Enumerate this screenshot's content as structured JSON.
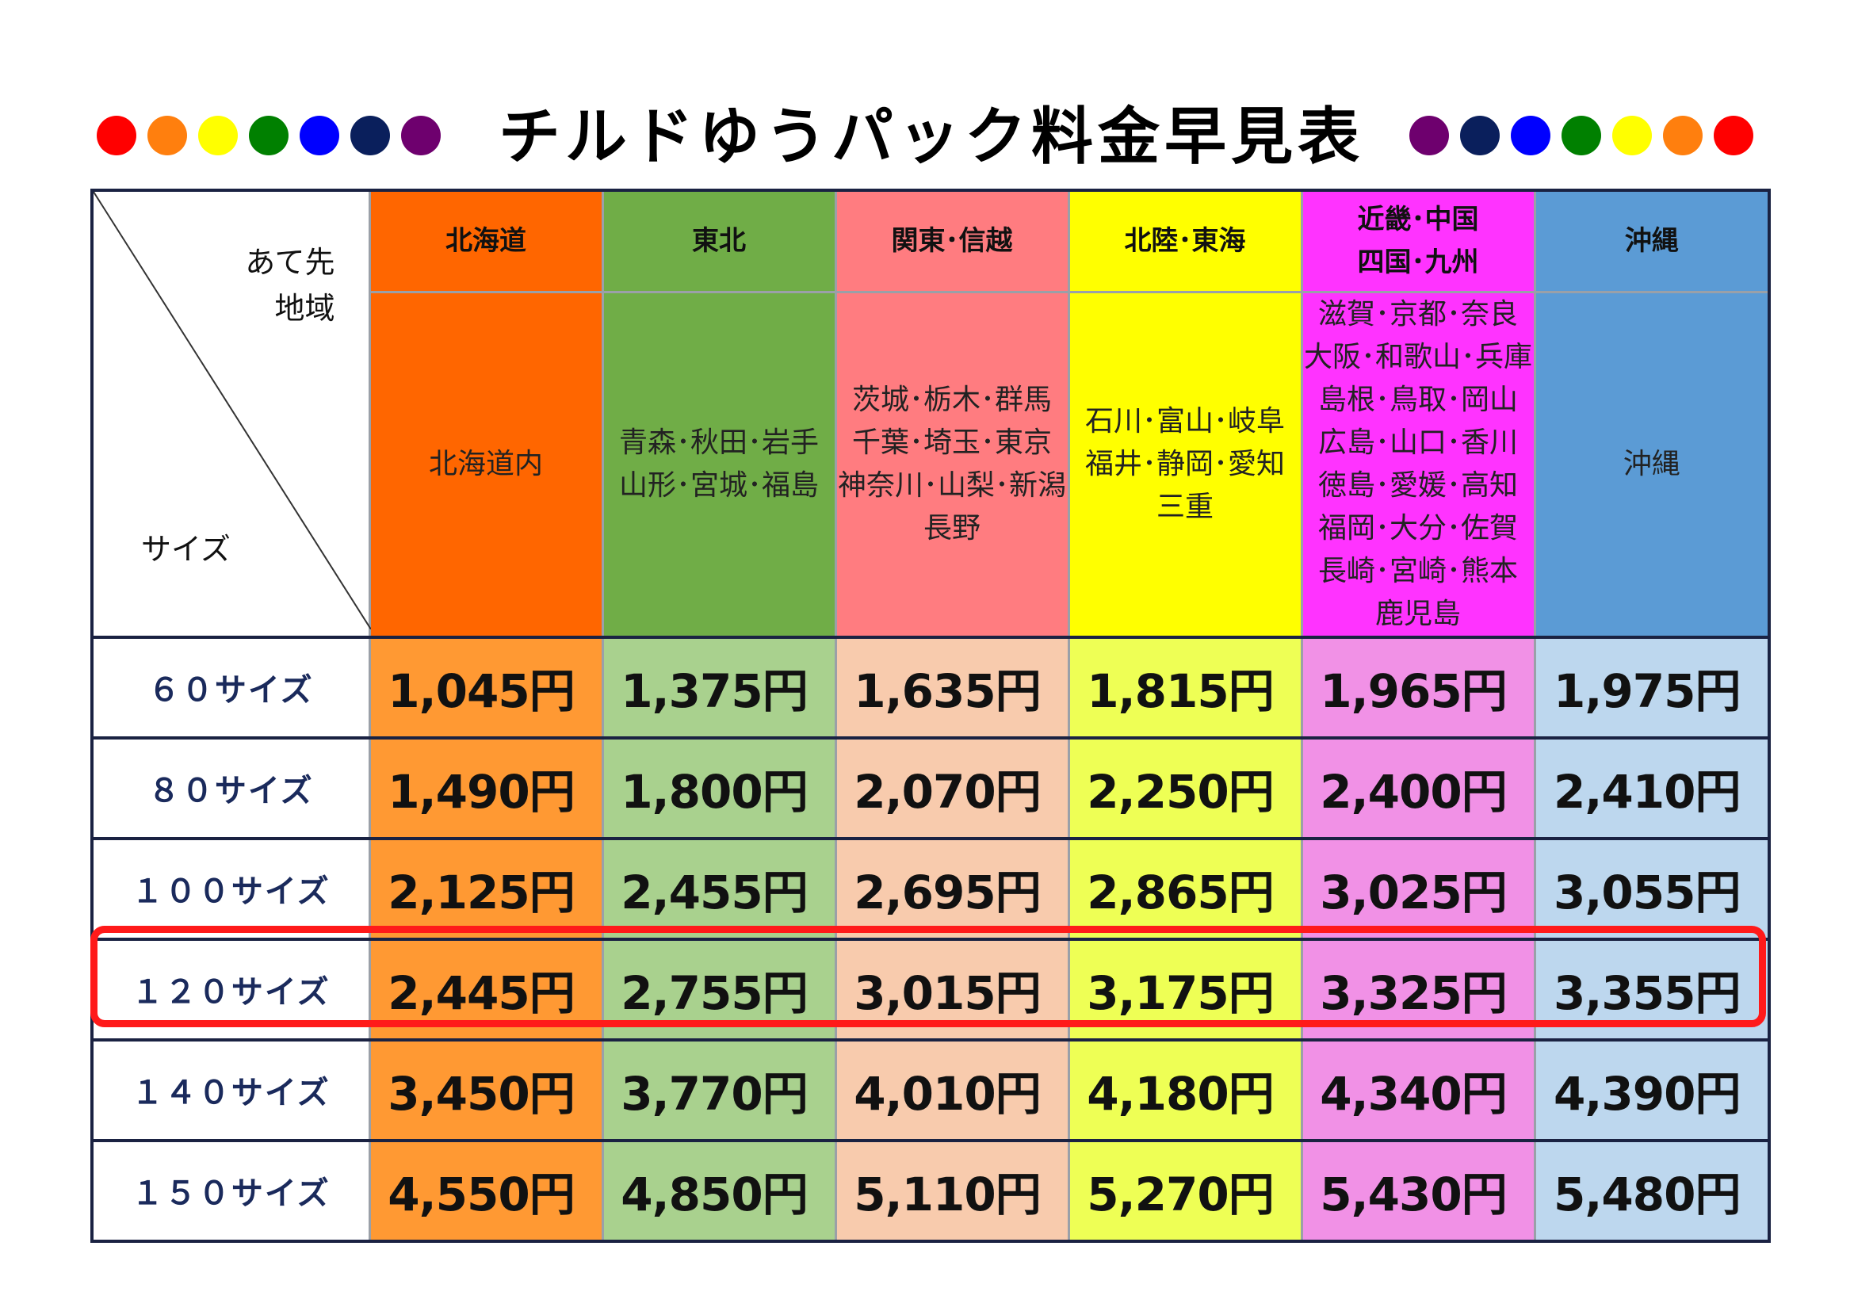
{
  "title": "チルドゆうパック料金早見表",
  "dots_left": [
    "#ff0000",
    "#ff7f0e",
    "#ffff00",
    "#008000",
    "#0000ff",
    "#0a1f5c",
    "#6e006e"
  ],
  "dots_right": [
    "#6e006e",
    "#0a1f5c",
    "#0000ff",
    "#008000",
    "#ffff00",
    "#ff7f0e",
    "#ff0000"
  ],
  "corner": {
    "destination_label_1": "あて先",
    "destination_label_2": "地域",
    "size_label": "サイズ"
  },
  "regions": [
    {
      "name": "北海道",
      "prefectures": "北海道内",
      "header_color": "#ff6600",
      "cell_color": "#ff9933"
    },
    {
      "name": "東北",
      "prefectures": "青森･秋田･岩手\n山形･宮城･福島",
      "header_color": "#70ad47",
      "cell_color": "#a9d18e"
    },
    {
      "name": "関東･信越",
      "prefectures": "茨城･栃木･群馬\n千葉･埼玉･東京\n神奈川･山梨･新潟\n長野",
      "header_color": "#ff7c80",
      "cell_color": "#f8cbad"
    },
    {
      "name": "北陸･東海",
      "prefectures": "石川･富山･岐阜\n福井･静岡･愛知\n三重",
      "header_color": "#ffff00",
      "cell_color": "#eeff55"
    },
    {
      "name": "近畿･中国\n四国･九州",
      "prefectures": "滋賀･京都･奈良\n大阪･和歌山･兵庫\n島根･鳥取･岡山\n広島･山口･香川\n徳島･愛媛･高知\n福岡･大分･佐賀\n長崎･宮崎･熊本\n鹿児島",
      "header_color": "#ff33ff",
      "cell_color": "#f191e6"
    },
    {
      "name": "沖縄",
      "prefectures": "沖縄",
      "header_color": "#5b9bd5",
      "cell_color": "#bdd7ee"
    }
  ],
  "rows": [
    {
      "size": "６０サイズ",
      "prices": [
        "1,045円",
        "1,375円",
        "1,635円",
        "1,815円",
        "1,965円",
        "1,975円"
      ]
    },
    {
      "size": "８０サイズ",
      "prices": [
        "1,490円",
        "1,800円",
        "2,070円",
        "2,250円",
        "2,400円",
        "2,410円"
      ]
    },
    {
      "size": "１００サイズ",
      "prices": [
        "2,125円",
        "2,455円",
        "2,695円",
        "2,865円",
        "3,025円",
        "3,055円"
      ]
    },
    {
      "size": "１２０サイズ",
      "prices": [
        "2,445円",
        "2,755円",
        "3,015円",
        "3,175円",
        "3,325円",
        "3,355円"
      ]
    },
    {
      "size": "１４０サイズ",
      "prices": [
        "3,450円",
        "3,770円",
        "4,010円",
        "4,180円",
        "4,340円",
        "4,390円"
      ]
    },
    {
      "size": "１５０サイズ",
      "prices": [
        "4,550円",
        "4,850円",
        "5,110円",
        "5,270円",
        "5,430円",
        "5,480円"
      ]
    }
  ],
  "highlighted_row": "１２０サイズ",
  "highlight_color": "#ff1a1a"
}
